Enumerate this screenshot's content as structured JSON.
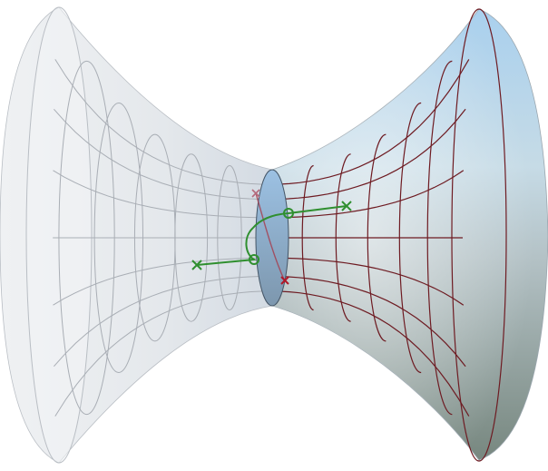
{
  "figure": {
    "subject": "wormhole-hyperboloid",
    "colors": {
      "background": "#ffffff",
      "left_surface": "#e6e9ee",
      "left_grid": "#a9aeb5",
      "right_surface_top": "#a8cce8",
      "right_surface_bottom": "#7b8a84",
      "right_grid": "#6e1b22",
      "path": "#2f8f2f",
      "marker_red": "#b01828",
      "marker_pink": "#b46a7c",
      "throat": "#8fb2d6"
    },
    "markers": [
      {
        "kind": "cross",
        "color": "path"
      },
      {
        "kind": "cross",
        "color": "path"
      },
      {
        "kind": "circle",
        "color": "path"
      },
      {
        "kind": "circle",
        "color": "path"
      },
      {
        "kind": "cross",
        "color": "marker_red"
      },
      {
        "kind": "cross",
        "color": "marker_pink"
      }
    ]
  }
}
